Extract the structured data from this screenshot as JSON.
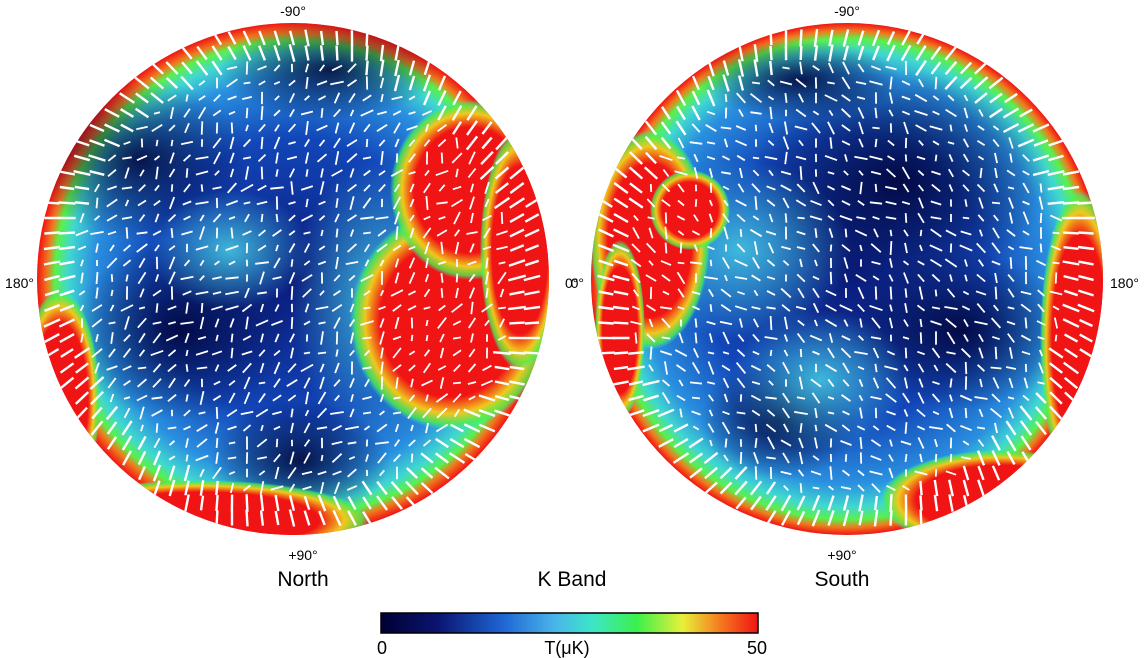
{
  "figure": {
    "band_label": "K Band",
    "colors": {
      "lowest": "#000033",
      "scale": [
        "#000033",
        "#0a1470",
        "#1e64d2",
        "#4ab4ea",
        "#3ce6c8",
        "#3cf04a",
        "#e8f03a",
        "#f57a1e",
        "#f01414"
      ]
    },
    "hemispheres": [
      {
        "name": "North",
        "label_top": "-90°",
        "label_bottom": "+90°",
        "label_left": "180°",
        "label_right": "0°"
      },
      {
        "name": "South",
        "label_top": "-90°",
        "label_bottom": "+90°",
        "label_left": "0°",
        "label_right": "180°"
      }
    ],
    "colorbar": {
      "min_label": "0",
      "max_label": "50",
      "unit_label": "T(μK)"
    }
  }
}
